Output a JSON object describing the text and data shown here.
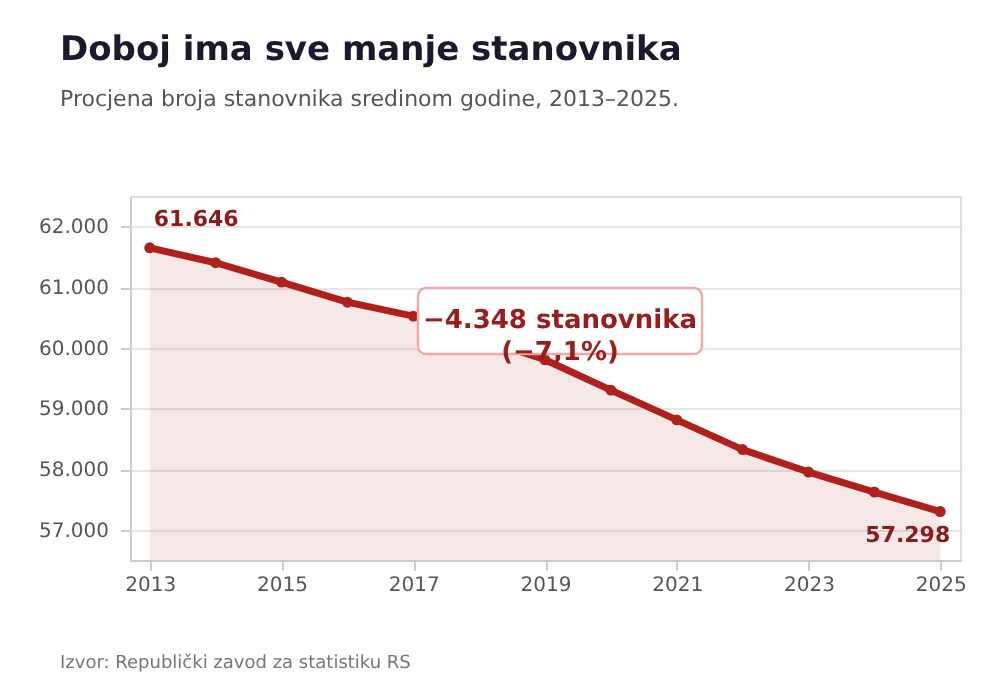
{
  "chart_data": {
    "type": "area",
    "title": "Doboj ima sve manje stanovnika",
    "subtitle": "Procjena broja stanovnika sredinom godine, 2013–2025.",
    "x": [
      2013,
      2014,
      2015,
      2016,
      2017,
      2018,
      2019,
      2020,
      2021,
      2022,
      2023,
      2024,
      2025
    ],
    "series": [
      {
        "color": "#b0201a",
        "values": [
          61646,
          61400,
          61080,
          60750,
          60520,
          null,
          59800,
          59300,
          58810,
          58320,
          57950,
          57620,
          57298
        ],
        "value_labels": [
          "61.646",
          null,
          null,
          null,
          null,
          null,
          null,
          null,
          null,
          null,
          null,
          null,
          "57.298"
        ]
      }
    ],
    "xlim": [
      2012.7,
      2025.3
    ],
    "xticks": [
      2013,
      2015,
      2017,
      2019,
      2021,
      2023,
      2025
    ],
    "ylim": [
      56500,
      62500
    ],
    "yticks": [
      {
        "value": 57000,
        "label": "57.000"
      },
      {
        "value": 58000,
        "label": "58.000"
      },
      {
        "value": 59000,
        "label": "59.000"
      },
      {
        "value": 60000,
        "label": "60.000"
      },
      {
        "value": 61000,
        "label": "61.000"
      },
      {
        "value": 62000,
        "label": "62.000"
      }
    ],
    "grid": "y",
    "marker": "circle",
    "annotations": [
      "−4.348 stanovnika\n(−7,1%)",
      "Izvor: Republički zavod za statistiku RS"
    ]
  }
}
